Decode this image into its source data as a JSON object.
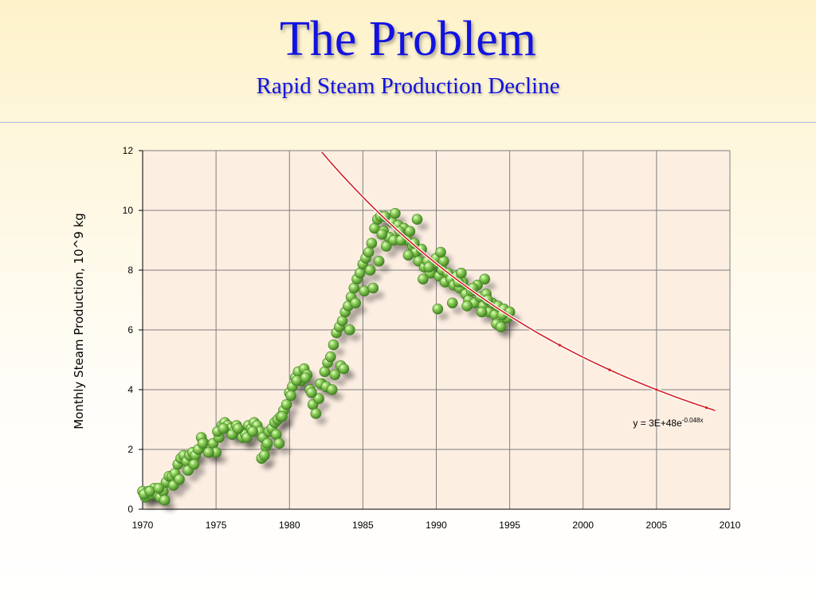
{
  "header": {
    "title": "The Problem",
    "subtitle": "Rapid Steam Production Decline"
  },
  "colors": {
    "title": "#1212e0",
    "marker_fill": "#7cc04f",
    "marker_edge": "#3f7d22",
    "trend_line": "#d42020",
    "plot_background": "#fdeee2",
    "grid": "#7f7f7f"
  },
  "chart_data": {
    "type": "scatter",
    "ylabel": "Monthly Steam Production, 10^9 kg",
    "xlabel": "",
    "xlim": [
      1970,
      2010
    ],
    "ylim": [
      0,
      12
    ],
    "x_ticks": [
      1970,
      1975,
      1980,
      1985,
      1990,
      1995,
      2000,
      2005,
      2010
    ],
    "y_ticks": [
      0,
      2,
      4,
      6,
      8,
      10,
      12
    ],
    "grid": true,
    "trendline": {
      "type": "exponential",
      "label_prefix": "y = 3E+48e",
      "label_exponent": "-0.048x",
      "x_start": 1982.2,
      "x_end": 2009,
      "markers_x": [
        1998.4,
        2001.8,
        2005,
        2008.4
      ]
    },
    "series": [
      {
        "values_x": [
          1970.0,
          1970.2,
          1970.4,
          1970.6,
          1970.8,
          1971.0,
          1971.2,
          1971.4,
          1971.6,
          1971.8,
          1972.0,
          1972.2,
          1972.4,
          1972.6,
          1972.8,
          1973.0,
          1973.2,
          1973.4,
          1973.6,
          1973.8,
          1974.0,
          1974.2,
          1974.4,
          1974.6,
          1974.8,
          1975.0,
          1975.2,
          1975.4,
          1975.6,
          1975.8,
          1976.0,
          1976.2,
          1976.4,
          1976.6,
          1976.8,
          1977.0,
          1977.2,
          1977.4,
          1977.6,
          1977.8,
          1978.0,
          1978.2,
          1978.4,
          1978.6,
          1978.8,
          1979.0,
          1979.2,
          1979.4,
          1979.6,
          1979.8,
          1980.0,
          1980.2,
          1980.4,
          1980.6,
          1980.8,
          1981.0,
          1981.2,
          1981.4,
          1981.6,
          1981.8,
          1982.0,
          1982.2,
          1982.4,
          1982.6,
          1982.8,
          1983.0,
          1983.2,
          1983.4,
          1983.6,
          1983.8,
          1984.0,
          1984.2,
          1984.4,
          1984.6,
          1984.8,
          1985.0,
          1985.2,
          1985.4,
          1985.6,
          1985.8,
          1986.0,
          1986.2,
          1986.4,
          1986.6,
          1986.8,
          1987.0,
          1987.2,
          1987.4,
          1987.6,
          1987.8,
          1988.0,
          1988.2,
          1988.4,
          1988.6,
          1988.8,
          1989.0,
          1989.2,
          1989.4,
          1989.6,
          1989.8,
          1990.0,
          1990.2,
          1990.4,
          1990.6,
          1990.8,
          1991.0,
          1991.2,
          1991.4,
          1991.6,
          1991.8,
          1992.0,
          1992.2,
          1992.4,
          1992.6,
          1992.8,
          1993.0,
          1993.2,
          1993.4,
          1993.6,
          1993.8,
          1994.0,
          1994.2,
          1994.4,
          1994.6,
          1994.8,
          1995.0,
          1970.1,
          1970.5,
          1971.1,
          1971.5,
          1972.1,
          1972.5,
          1973.1,
          1973.5,
          1974.1,
          1974.5,
          1975.1,
          1975.5,
          1976.1,
          1976.5,
          1977.1,
          1977.5,
          1978.1,
          1978.5,
          1979.1,
          1979.5,
          1980.1,
          1980.5,
          1981.1,
          1981.5,
          1982.1,
          1982.5,
          1983.1,
          1983.5,
          1984.1,
          1984.5,
          1985.1,
          1985.5,
          1986.1,
          1986.5,
          1987.1,
          1987.5,
          1988.1,
          1988.5,
          1989.1,
          1989.5,
          1990.1,
          1990.5,
          1991.1,
          1991.5,
          1992.1,
          1992.5,
          1993.1,
          1993.5,
          1994.1,
          1994.5,
          1986.3,
          1987.6,
          1988.7,
          1990.3,
          1991.7,
          1993.3,
          1994.4,
          1985.7,
          1983.7,
          1979.3,
          1978.3,
          1982.9
        ],
        "values_y": [
          0.6,
          0.4,
          0.6,
          0.5,
          0.7,
          0.5,
          0.4,
          0.6,
          0.9,
          1.1,
          1.1,
          1.2,
          1.5,
          1.7,
          1.8,
          1.6,
          1.8,
          1.9,
          1.8,
          2.0,
          2.4,
          2.2,
          2.1,
          2.0,
          2.2,
          1.9,
          2.4,
          2.8,
          2.9,
          2.8,
          2.7,
          2.6,
          2.8,
          2.6,
          2.4,
          2.5,
          2.8,
          2.7,
          2.9,
          2.8,
          2.6,
          2.4,
          2.1,
          2.6,
          2.7,
          2.9,
          3.0,
          3.1,
          3.3,
          3.5,
          3.9,
          4.1,
          4.4,
          4.6,
          4.3,
          4.7,
          4.5,
          4.0,
          3.5,
          3.2,
          3.7,
          4.2,
          4.6,
          4.9,
          5.1,
          5.5,
          5.9,
          6.1,
          6.3,
          6.6,
          6.8,
          7.1,
          7.4,
          7.7,
          7.9,
          8.2,
          8.4,
          8.6,
          8.9,
          9.4,
          9.7,
          9.8,
          9.3,
          8.8,
          9.1,
          9.6,
          9.9,
          9.5,
          9.2,
          9.4,
          9.0,
          9.3,
          8.8,
          8.6,
          8.3,
          8.7,
          8.1,
          8.3,
          7.9,
          8.2,
          8.4,
          7.8,
          8.0,
          7.6,
          7.9,
          7.7,
          7.5,
          7.8,
          7.4,
          7.6,
          7.2,
          7.0,
          7.3,
          6.9,
          7.5,
          7.1,
          6.8,
          7.2,
          6.6,
          6.9,
          6.5,
          6.8,
          6.3,
          6.7,
          6.4,
          6.6,
          0.5,
          0.6,
          0.7,
          0.3,
          0.8,
          1.0,
          1.3,
          1.5,
          2.2,
          1.9,
          2.6,
          2.7,
          2.5,
          2.7,
          2.4,
          2.6,
          1.7,
          2.2,
          2.5,
          3.1,
          3.8,
          4.3,
          4.4,
          3.9,
          4.2,
          4.1,
          4.5,
          4.8,
          6.0,
          6.9,
          7.3,
          8.0,
          8.3,
          9.8,
          9.0,
          9.3,
          8.5,
          8.9,
          7.7,
          8.1,
          6.7,
          8.3,
          6.9,
          7.6,
          6.8,
          7.4,
          6.6,
          7.0,
          6.2,
          6.5,
          9.2,
          9.0,
          9.7,
          8.6,
          7.9,
          7.7,
          6.1,
          7.4,
          4.7,
          2.2,
          1.8,
          4.0
        ]
      }
    ]
  }
}
